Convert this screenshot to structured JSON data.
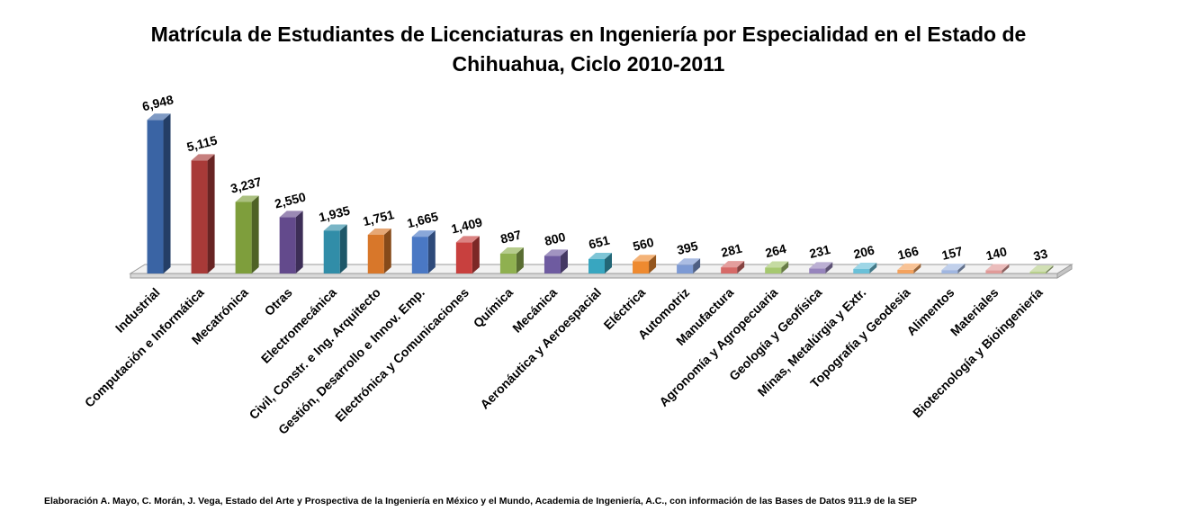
{
  "chart_data": {
    "type": "bar",
    "title_line1": "Matrícula de Estudiantes de Licenciaturas en Ingeniería por Especialidad en el Estado de",
    "title_line2": "Chihuahua, Ciclo 2010-2011",
    "categories": [
      "Industrial",
      "Computación e Informática",
      "Mecatrónica",
      "Otras",
      "Electromecánica",
      "Civil, Constr. e Ing. Arquitecto",
      "Gestión, Desarrollo e Innov. Emp.",
      "Electrónica y Comunicaciones",
      "Química",
      "Mecánica",
      "Aeronáutica y Aeroespacial",
      "Eléctrica",
      "Automotriz",
      "Manufactura",
      "Agronomía y Agropecuaria",
      "Geología y Geofísica",
      "Minas, Metalúrgia y Extr.",
      "Topografía y Geodesia",
      "Alimentos",
      "Materiales",
      "Biotecnología y Bioingeniería"
    ],
    "values": [
      6948,
      5115,
      3237,
      2550,
      1935,
      1751,
      1665,
      1409,
      897,
      800,
      651,
      560,
      395,
      281,
      264,
      231,
      206,
      166,
      157,
      140,
      33
    ],
    "value_labels": [
      "6,948",
      "5,115",
      "3,237",
      "2,550",
      "1,935",
      "1,751",
      "1,665",
      "1,409",
      "897",
      "800",
      "651",
      "560",
      "395",
      "281",
      "264",
      "231",
      "206",
      "166",
      "157",
      "140",
      "33"
    ],
    "colors": [
      "#3A64A4",
      "#A83A38",
      "#7E9E3C",
      "#634A8C",
      "#318DA8",
      "#D8772A",
      "#4A78C4",
      "#C8403E",
      "#8FB050",
      "#6E5BA0",
      "#38A6C0",
      "#EE8A30",
      "#7D9AD4",
      "#D66A68",
      "#A6C870",
      "#9684BC",
      "#6AC0D8",
      "#F4A25E",
      "#A0B6E0",
      "#E09A98",
      "#B8D08C"
    ],
    "ylim": [
      0,
      7000
    ],
    "grid": false,
    "legend": "none",
    "view": "3d-column"
  },
  "footnote": "Elaboración A. Mayo, C. Morán, J. Vega, Estado del Arte y Prospectiva de la Ingeniería en México y el Mundo, Academia de Ingeniería, A.C., con información de las Bases de Datos  911.9  de la SEP"
}
